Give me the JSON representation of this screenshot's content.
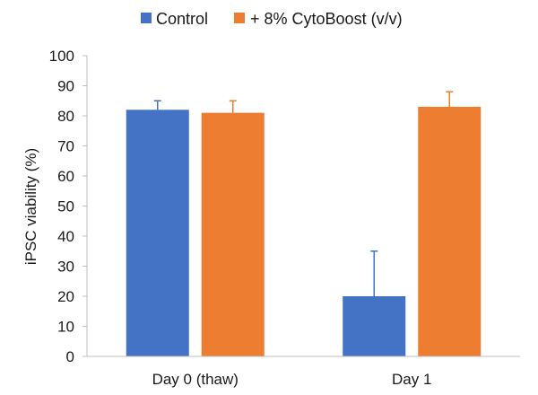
{
  "chart_data": {
    "type": "bar",
    "title": "",
    "xlabel": "",
    "ylabel": "iPSC viability (%)",
    "ylim": [
      0,
      100
    ],
    "yticks": [
      0,
      10,
      20,
      30,
      40,
      50,
      60,
      70,
      80,
      90,
      100
    ],
    "categories": [
      "Day 0 (thaw)",
      "Day 1"
    ],
    "series": [
      {
        "name": "Control",
        "color": "#4472C4",
        "values": [
          82,
          20
        ],
        "error_upper": [
          3,
          15
        ]
      },
      {
        "name": "+ 8% CytoBoost (v/v)",
        "color": "#ED7D31",
        "values": [
          81,
          83
        ],
        "error_upper": [
          4,
          5
        ]
      }
    ],
    "legend_position": "top",
    "grid": false
  }
}
